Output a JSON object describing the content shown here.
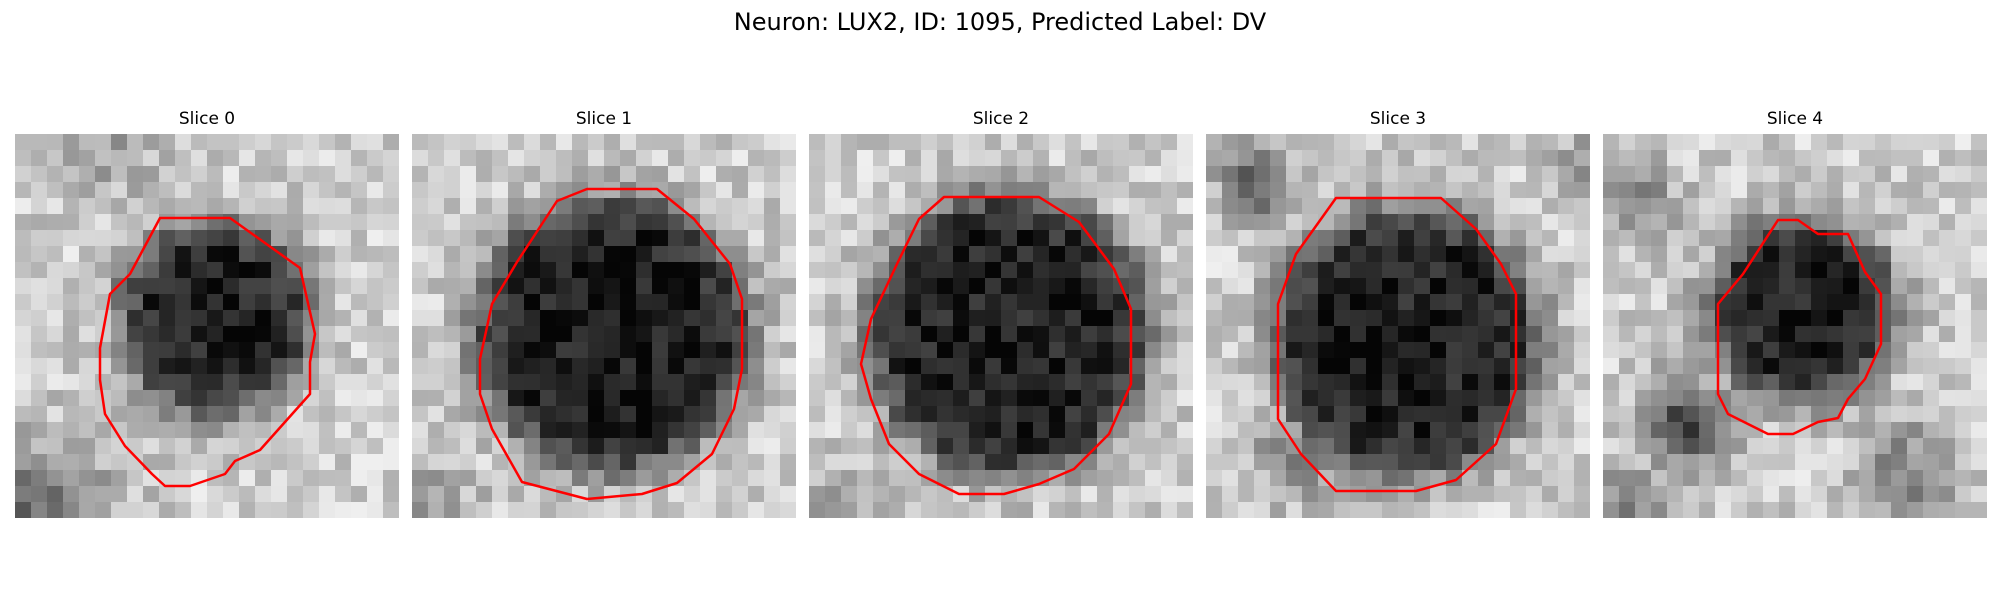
{
  "figure": {
    "title": "Neuron: LUX2, ID: 1095, Predicted Label: DV"
  },
  "slices": [
    {
      "title": "Slice 0"
    },
    {
      "title": "Slice 1"
    },
    {
      "title": "Slice 2"
    },
    {
      "title": "Slice 3"
    },
    {
      "title": "Slice 4"
    }
  ],
  "colors": {
    "contour": "#ff0000",
    "background": "#ffffff"
  }
}
